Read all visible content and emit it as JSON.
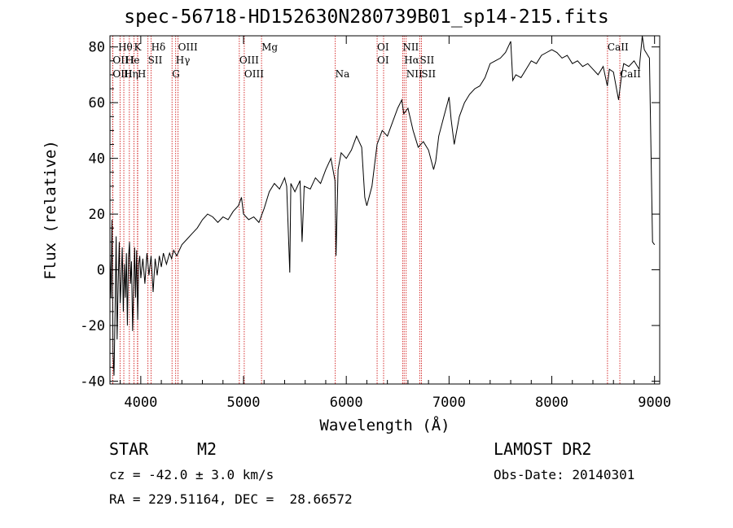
{
  "chart_data": {
    "type": "line",
    "title": "spec-56718-HD152630N280739B01_sp14-215.fits",
    "xlabel": "Wavelength (Å)",
    "ylabel": "Flux (relative)",
    "xlim": [
      3700,
      9050
    ],
    "ylim": [
      -41,
      84
    ],
    "xticks": [
      4000,
      5000,
      6000,
      7000,
      8000,
      9000
    ],
    "yticks": [
      -40,
      -20,
      0,
      20,
      40,
      60,
      80
    ],
    "grid": false,
    "series": [
      {
        "values": [
          [
            3700,
            5
          ],
          [
            3710,
            -10
          ],
          [
            3720,
            18
          ],
          [
            3730,
            -30
          ],
          [
            3740,
            -38
          ],
          [
            3750,
            -15
          ],
          [
            3760,
            12
          ],
          [
            3770,
            -25
          ],
          [
            3780,
            -5
          ],
          [
            3790,
            10
          ],
          [
            3800,
            -12
          ],
          [
            3810,
            -3
          ],
          [
            3820,
            8
          ],
          [
            3830,
            -15
          ],
          [
            3840,
            2
          ],
          [
            3850,
            -10
          ],
          [
            3860,
            6
          ],
          [
            3870,
            -20
          ],
          [
            3880,
            4
          ],
          [
            3890,
            10
          ],
          [
            3900,
            -5
          ],
          [
            3910,
            3
          ],
          [
            3920,
            -22
          ],
          [
            3930,
            -8
          ],
          [
            3940,
            8
          ],
          [
            3950,
            -10
          ],
          [
            3960,
            7
          ],
          [
            3970,
            -18
          ],
          [
            3980,
            2
          ],
          [
            3990,
            5
          ],
          [
            4000,
            -3
          ],
          [
            4020,
            4
          ],
          [
            4040,
            -5
          ],
          [
            4060,
            6
          ],
          [
            4080,
            -2
          ],
          [
            4100,
            5
          ],
          [
            4120,
            -8
          ],
          [
            4140,
            4
          ],
          [
            4160,
            -2
          ],
          [
            4180,
            5
          ],
          [
            4200,
            1
          ],
          [
            4220,
            6
          ],
          [
            4250,
            2
          ],
          [
            4280,
            6
          ],
          [
            4300,
            4
          ],
          [
            4320,
            7
          ],
          [
            4350,
            5
          ],
          [
            4400,
            9
          ],
          [
            4450,
            11
          ],
          [
            4500,
            13
          ],
          [
            4550,
            15
          ],
          [
            4600,
            18
          ],
          [
            4650,
            20
          ],
          [
            4700,
            19
          ],
          [
            4750,
            17
          ],
          [
            4800,
            19
          ],
          [
            4850,
            18
          ],
          [
            4900,
            21
          ],
          [
            4950,
            23
          ],
          [
            4980,
            26
          ],
          [
            5000,
            20
          ],
          [
            5050,
            18
          ],
          [
            5100,
            19
          ],
          [
            5150,
            17
          ],
          [
            5200,
            22
          ],
          [
            5250,
            28
          ],
          [
            5300,
            31
          ],
          [
            5350,
            29
          ],
          [
            5400,
            33
          ],
          [
            5420,
            30
          ],
          [
            5450,
            -1
          ],
          [
            5460,
            31
          ],
          [
            5500,
            28
          ],
          [
            5550,
            32
          ],
          [
            5570,
            10
          ],
          [
            5590,
            30
          ],
          [
            5650,
            29
          ],
          [
            5700,
            33
          ],
          [
            5750,
            31
          ],
          [
            5800,
            36
          ],
          [
            5850,
            40
          ],
          [
            5890,
            32
          ],
          [
            5900,
            5
          ],
          [
            5920,
            36
          ],
          [
            5950,
            42
          ],
          [
            6000,
            40
          ],
          [
            6050,
            43
          ],
          [
            6100,
            48
          ],
          [
            6150,
            44
          ],
          [
            6180,
            26
          ],
          [
            6200,
            23
          ],
          [
            6250,
            30
          ],
          [
            6300,
            45
          ],
          [
            6350,
            50
          ],
          [
            6400,
            48
          ],
          [
            6450,
            53
          ],
          [
            6500,
            58
          ],
          [
            6540,
            61
          ],
          [
            6560,
            56
          ],
          [
            6600,
            58
          ],
          [
            6650,
            50
          ],
          [
            6700,
            44
          ],
          [
            6750,
            46
          ],
          [
            6800,
            43
          ],
          [
            6850,
            36
          ],
          [
            6870,
            39
          ],
          [
            6900,
            48
          ],
          [
            6950,
            55
          ],
          [
            7000,
            62
          ],
          [
            7020,
            54
          ],
          [
            7050,
            45
          ],
          [
            7100,
            55
          ],
          [
            7150,
            60
          ],
          [
            7200,
            63
          ],
          [
            7250,
            65
          ],
          [
            7300,
            66
          ],
          [
            7350,
            69
          ],
          [
            7400,
            74
          ],
          [
            7450,
            75
          ],
          [
            7500,
            76
          ],
          [
            7550,
            78
          ],
          [
            7600,
            82
          ],
          [
            7620,
            68
          ],
          [
            7650,
            70
          ],
          [
            7700,
            69
          ],
          [
            7750,
            72
          ],
          [
            7800,
            75
          ],
          [
            7850,
            74
          ],
          [
            7900,
            77
          ],
          [
            7950,
            78
          ],
          [
            8000,
            79
          ],
          [
            8050,
            78
          ],
          [
            8100,
            76
          ],
          [
            8150,
            77
          ],
          [
            8200,
            74
          ],
          [
            8250,
            75
          ],
          [
            8300,
            73
          ],
          [
            8350,
            74
          ],
          [
            8400,
            72
          ],
          [
            8450,
            70
          ],
          [
            8500,
            73
          ],
          [
            8540,
            66
          ],
          [
            8560,
            72
          ],
          [
            8600,
            71
          ],
          [
            8650,
            61
          ],
          [
            8680,
            70
          ],
          [
            8700,
            74
          ],
          [
            8750,
            73
          ],
          [
            8800,
            75
          ],
          [
            8850,
            72
          ],
          [
            8880,
            84
          ],
          [
            8900,
            79
          ],
          [
            8950,
            76
          ],
          [
            8980,
            10
          ],
          [
            9000,
            9
          ]
        ]
      }
    ],
    "lines": [
      {
        "label": "Hθ",
        "x": 3798
      },
      {
        "label": "OII",
        "x": 3727
      },
      {
        "label": "OIII",
        "x": 3727
      },
      {
        "label": "Hη",
        "x": 3835
      },
      {
        "label": "He",
        "x": 3889
      },
      {
        "label": "K",
        "x": 3934
      },
      {
        "label": "H",
        "x": 3968
      },
      {
        "label": "I",
        "x": 3970
      },
      {
        "label": "SII",
        "x": 4070
      },
      {
        "label": "Hδ",
        "x": 4101
      },
      {
        "label": "OIII",
        "x": 4363
      },
      {
        "label": "Hγ",
        "x": 4340
      },
      {
        "label": "G",
        "x": 4304
      },
      {
        "label": "OIII",
        "x": 4959
      },
      {
        "label": "OIII",
        "x": 5007
      },
      {
        "label": "Mg",
        "x": 5175
      },
      {
        "label": "Na",
        "x": 5893
      },
      {
        "label": "OI",
        "x": 6300
      },
      {
        "label": "OI",
        "x": 6363
      },
      {
        "label": "NII",
        "x": 6548
      },
      {
        "label": "Hα",
        "x": 6563
      },
      {
        "label": "NII",
        "x": 6583
      },
      {
        "label": "SII",
        "x": 6716
      },
      {
        "label": "SII",
        "x": 6731
      },
      {
        "label": "CaII",
        "x": 8542
      },
      {
        "label": "CaII",
        "x": 8662
      }
    ],
    "line_labels_row1": [
      {
        "text": "Hθ",
        "x": 3780
      },
      {
        "text": "K",
        "x": 3934
      },
      {
        "text": "Hδ",
        "x": 4101
      },
      {
        "text": "OIII",
        "x": 4363
      },
      {
        "text": "Mg",
        "x": 5175
      },
      {
        "text": "OI",
        "x": 6300
      },
      {
        "text": "NII",
        "x": 6548
      },
      {
        "text": "CaII",
        "x": 8542
      }
    ],
    "line_labels_row2": [
      {
        "text": "OII",
        "x": 3727
      },
      {
        "text": "He",
        "x": 3850
      },
      {
        "text": "I",
        "x": 3900
      },
      {
        "text": "SII",
        "x": 4070
      },
      {
        "text": "Hγ",
        "x": 4340
      },
      {
        "text": "OIII",
        "x": 4959
      },
      {
        "text": "OI",
        "x": 6300
      },
      {
        "text": "Hα",
        "x": 6563
      },
      {
        "text": "SII",
        "x": 6716
      }
    ],
    "line_labels_row3": [
      {
        "text": "OIII",
        "x": 3727
      },
      {
        "text": "Hη",
        "x": 3835
      },
      {
        "text": "H",
        "x": 3968
      },
      {
        "text": "G",
        "x": 4304
      },
      {
        "text": "OIII",
        "x": 5007
      },
      {
        "text": "Na",
        "x": 5893
      },
      {
        "text": "NII",
        "x": 6583
      },
      {
        "text": "SII",
        "x": 6731
      },
      {
        "text": "CaII",
        "x": 8662
      }
    ],
    "colors": {
      "spectrum": "#000000",
      "lines": "#cc0000"
    }
  },
  "info": {
    "object_class": "STAR",
    "subclass": "M2",
    "survey": "LAMOST DR2",
    "cz": "cz = -42.0 ± 3.0 km/s",
    "obs_date": "Obs-Date: 20140301",
    "coords": "RA = 229.51164, DEC =  28.66572"
  }
}
